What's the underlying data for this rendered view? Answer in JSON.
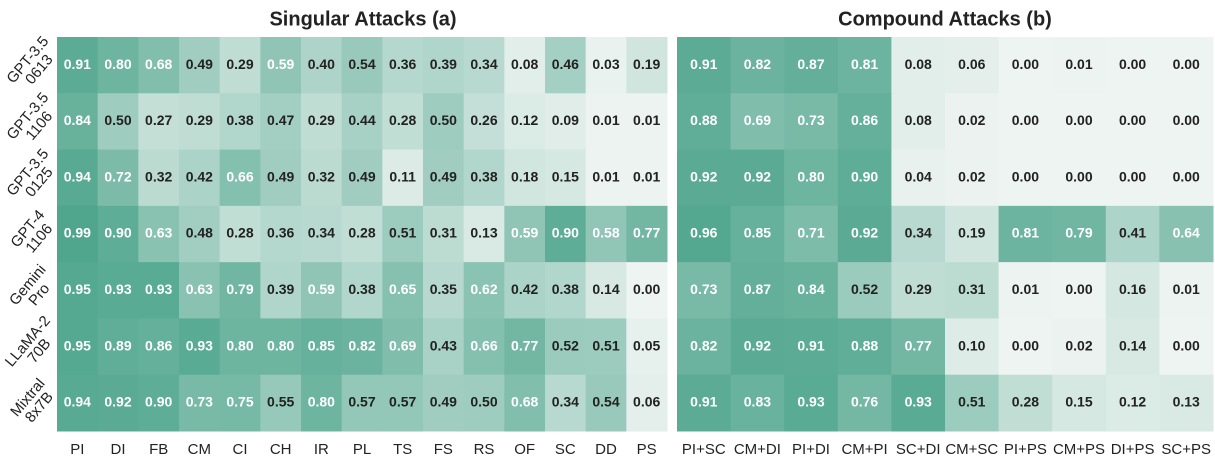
{
  "chart_data": [
    {
      "type": "heatmap",
      "title": "Singular Attacks (a)",
      "categories": [
        "PI",
        "DI",
        "FB",
        "CM",
        "CI",
        "CH",
        "IR",
        "PL",
        "TS",
        "FS",
        "RS",
        "OF",
        "SC",
        "DD",
        "PS"
      ],
      "rows": [
        [
          "GPT-3.5",
          "0613"
        ],
        [
          "GPT-3.5",
          "1106"
        ],
        [
          "GPT-3.5",
          "0125"
        ],
        [
          "GPT-4",
          "1106"
        ],
        [
          "Gemini",
          "Pro"
        ],
        [
          "LLaMA-2",
          "70B"
        ],
        [
          "Mixtral",
          "8x7B"
        ]
      ],
      "colormap": [
        "#eef4f1",
        "#4ea58c"
      ],
      "values": [
        [
          0.91,
          0.8,
          0.68,
          0.49,
          0.29,
          0.59,
          0.4,
          0.54,
          0.36,
          0.39,
          0.34,
          0.08,
          0.46,
          0.03,
          0.19
        ],
        [
          0.84,
          0.5,
          0.27,
          0.29,
          0.38,
          0.47,
          0.29,
          0.44,
          0.28,
          0.5,
          0.26,
          0.12,
          0.09,
          0.01,
          0.01
        ],
        [
          0.94,
          0.72,
          0.32,
          0.42,
          0.66,
          0.49,
          0.32,
          0.49,
          0.11,
          0.49,
          0.38,
          0.18,
          0.15,
          0.01,
          0.01
        ],
        [
          0.99,
          0.9,
          0.63,
          0.48,
          0.28,
          0.36,
          0.34,
          0.28,
          0.51,
          0.31,
          0.13,
          0.59,
          0.9,
          0.58,
          0.77
        ],
        [
          0.95,
          0.93,
          0.93,
          0.63,
          0.79,
          0.39,
          0.59,
          0.38,
          0.65,
          0.35,
          0.62,
          0.42,
          0.38,
          0.14,
          0
        ],
        [
          0.95,
          0.89,
          0.86,
          0.93,
          0.8,
          0.8,
          0.85,
          0.82,
          0.69,
          0.43,
          0.66,
          0.77,
          0.52,
          0.51,
          0.05
        ],
        [
          0.94,
          0.92,
          0.9,
          0.73,
          0.75,
          0.55,
          0.8,
          0.57,
          0.57,
          0.49,
          0.5,
          0.68,
          0.34,
          0.54,
          0.06
        ]
      ],
      "value_labels": [
        [
          "0.91",
          "0.80",
          "0.68",
          "0.49",
          "0.29",
          "0.59",
          "0.40",
          "0.54",
          "0.36",
          "0.39",
          "0.34",
          "0.08",
          "0.46",
          "0.03",
          "0.19"
        ],
        [
          "0.84",
          "0.50",
          "0.27",
          "0.29",
          "0.38",
          "0.47",
          "0.29",
          "0.44",
          "0.28",
          "0.50",
          "0.26",
          "0.12",
          "0.09",
          "0.01",
          "0.01"
        ],
        [
          "0.94",
          "0.72",
          "0.32",
          "0.42",
          "0.66",
          "0.49",
          "0.32",
          "0.49",
          "0.11",
          "0.49",
          "0.38",
          "0.18",
          "0.15",
          "0.01",
          "0.01"
        ],
        [
          "0.99",
          "0.90",
          "0.63",
          "0.48",
          "0.28",
          "0.36",
          "0.34",
          "0.28",
          "0.51",
          "0.31",
          "0.13",
          "0.59",
          "0.90",
          "0.58",
          "0.77"
        ],
        [
          "0.95",
          "0.93",
          "0.93",
          "0.63",
          "0.79",
          "0.39",
          "0.59",
          "0.38",
          "0.65",
          "0.35",
          "0.62",
          "0.42",
          "0.38",
          "0.14",
          "0.00"
        ],
        [
          "0.95",
          "0.89",
          "0.86",
          "0.93",
          "0.80",
          "0.80",
          "0.85",
          "0.82",
          "0.69",
          "0.43",
          "0.66",
          "0.77",
          "0.52",
          "0.51",
          "0.05"
        ],
        [
          "0.94",
          "0.92",
          "0.90",
          "0.73",
          "0.75",
          "0.55",
          "0.80",
          "0.57",
          "0.57",
          "0.49",
          "0.50",
          "0.68",
          "0.34",
          "0.54",
          "0.06"
        ]
      ]
    },
    {
      "type": "heatmap",
      "title": "Compound Attacks (b)",
      "categories": [
        "PI+SC",
        "CM+DI",
        "PI+DI",
        "CM+PI",
        "SC+DI",
        "CM+SC",
        "PI+PS",
        "CM+PS",
        "DI+PS",
        "SC+PS"
      ],
      "colormap": [
        "#eef4f1",
        "#4ea58c"
      ],
      "values": [
        [
          0.91,
          0.82,
          0.87,
          0.81,
          0.08,
          0.06,
          0,
          0.01,
          0,
          0
        ],
        [
          0.88,
          0.69,
          0.73,
          0.86,
          0.08,
          0.02,
          0,
          0,
          0,
          0
        ],
        [
          0.92,
          0.92,
          0.8,
          0.9,
          0.04,
          0.02,
          0,
          0,
          0,
          0
        ],
        [
          0.96,
          0.85,
          0.71,
          0.92,
          0.34,
          0.19,
          0.81,
          0.79,
          0.41,
          0.64
        ],
        [
          0.73,
          0.87,
          0.84,
          0.52,
          0.29,
          0.31,
          0.01,
          0,
          0.16,
          0.01
        ],
        [
          0.82,
          0.92,
          0.91,
          0.88,
          0.77,
          0.1,
          0,
          0.02,
          0.14,
          0
        ],
        [
          0.91,
          0.83,
          0.93,
          0.76,
          0.93,
          0.51,
          0.28,
          0.15,
          0.12,
          0.13
        ]
      ],
      "value_labels": [
        [
          "0.91",
          "0.82",
          "0.87",
          "0.81",
          "0.08",
          "0.06",
          "0.00",
          "0.01",
          "0.00",
          "0.00"
        ],
        [
          "0.88",
          "0.69",
          "0.73",
          "0.86",
          "0.08",
          "0.02",
          "0.00",
          "0.00",
          "0.00",
          "0.00"
        ],
        [
          "0.92",
          "0.92",
          "0.80",
          "0.90",
          "0.04",
          "0.02",
          "0.00",
          "0.00",
          "0.00",
          "0.00"
        ],
        [
          "0.96",
          "0.85",
          "0.71",
          "0.92",
          "0.34",
          "0.19",
          "0.81",
          "0.79",
          "0.41",
          "0.64"
        ],
        [
          "0.73",
          "0.87",
          "0.84",
          "0.52",
          "0.29",
          "0.31",
          "0.01",
          "0.00",
          "0.16",
          "0.01"
        ],
        [
          "0.82",
          "0.92",
          "0.91",
          "0.88",
          "0.77",
          "0.10",
          "0.00",
          "0.02",
          "0.14",
          "0.00"
        ],
        [
          "0.91",
          "0.83",
          "0.93",
          "0.76",
          "0.93",
          "0.51",
          "0.28",
          "0.15",
          "0.12",
          "0.13"
        ]
      ]
    }
  ]
}
